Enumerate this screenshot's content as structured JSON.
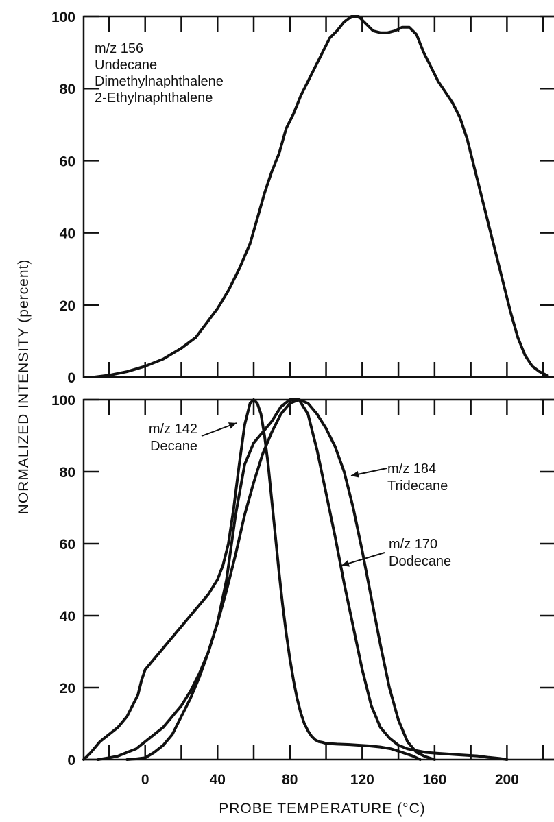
{
  "chart_data": [
    {
      "type": "line",
      "panel": "top",
      "title": "",
      "xlabel": "",
      "ylabel": "",
      "xlim": [
        -34,
        226
      ],
      "ylim": [
        0,
        100
      ],
      "x_ticks": [
        0,
        40,
        80,
        120,
        160,
        200
      ],
      "y_ticks": [
        0,
        20,
        40,
        60,
        80,
        100
      ],
      "y_tick_labels": [
        "0",
        "20",
        "40",
        "60",
        "80",
        "100"
      ],
      "annotation": {
        "lines": [
          "m/z  156",
          "Undecane",
          "Dimethylnaphthalene",
          "2-Ethylnaphthalene"
        ]
      },
      "series": [
        {
          "x": [
            -28,
            -20,
            -10,
            0,
            10,
            20,
            28,
            34,
            40,
            46,
            52,
            58,
            62,
            66,
            70,
            74,
            78,
            82,
            86,
            90,
            94,
            98,
            102,
            106,
            110,
            114,
            118,
            122,
            126,
            130,
            134,
            138,
            142,
            146,
            150,
            154,
            158,
            162,
            166,
            170,
            174,
            178,
            182,
            186,
            190,
            194,
            198,
            202,
            206,
            210,
            214,
            218,
            222
          ],
          "y": [
            0,
            0.5,
            1.5,
            3,
            5,
            8,
            11,
            15,
            19,
            24,
            30,
            37,
            44,
            51,
            57,
            62,
            69,
            73,
            78,
            82,
            86,
            90,
            94,
            96,
            98.5,
            100,
            100,
            98,
            96,
            95.5,
            95.5,
            96,
            97,
            97,
            95,
            90,
            86,
            82,
            79,
            76,
            72,
            66,
            58,
            50,
            42,
            34,
            26,
            18,
            11,
            6,
            3,
            1.5,
            0.5
          ]
        }
      ]
    },
    {
      "type": "line",
      "panel": "bottom",
      "title": "",
      "ylabel": "NORMALIZED INTENSITY (percent)",
      "xlabel": "PROBE TEMPERATURE (°C)",
      "xlim": [
        -34,
        226
      ],
      "ylim": [
        0,
        100
      ],
      "x_ticks": [
        0,
        40,
        80,
        120,
        160,
        200
      ],
      "x_tick_labels": [
        "0",
        "40",
        "80",
        "120",
        "160",
        "200"
      ],
      "y_ticks": [
        0,
        20,
        40,
        60,
        80,
        100
      ],
      "y_tick_labels": [
        "0",
        "20",
        "40",
        "60",
        "80",
        "100"
      ],
      "series": [
        {
          "name": "m/z 142 Decane",
          "label_lines": [
            "m/z  142",
            "Decane"
          ],
          "x": [
            -34,
            -30,
            -25,
            -20,
            -15,
            -10,
            -7,
            -4,
            -2,
            0,
            5,
            10,
            15,
            20,
            25,
            30,
            35,
            40,
            43,
            46,
            49,
            52,
            55,
            58,
            60,
            62,
            64,
            66,
            68,
            70,
            72,
            74,
            76,
            78,
            80,
            82,
            84,
            86,
            88,
            90,
            92,
            94,
            96,
            98,
            100,
            106,
            112,
            118,
            124,
            130,
            136,
            142,
            148,
            152
          ],
          "y": [
            0,
            2,
            5,
            7,
            9,
            12,
            15,
            18,
            22,
            25,
            28,
            31,
            34,
            37,
            40,
            43,
            46,
            50,
            54,
            60,
            70,
            82,
            93,
            99,
            100,
            99,
            96,
            90,
            82,
            72,
            62,
            52,
            43,
            35,
            28,
            22,
            17,
            13,
            10,
            8,
            6.5,
            5.5,
            5,
            4.8,
            4.5,
            4.3,
            4.2,
            4,
            3.8,
            3.5,
            3,
            2,
            1,
            0
          ]
        },
        {
          "name": "m/z 170 Dodecane",
          "label_lines": [
            "m/z  170",
            "Dodecane"
          ],
          "x": [
            -26,
            -20,
            -15,
            -10,
            -5,
            0,
            5,
            10,
            15,
            20,
            25,
            30,
            35,
            40,
            45,
            50,
            55,
            60,
            65,
            70,
            75,
            80,
            85,
            90,
            95,
            100,
            105,
            110,
            115,
            120,
            125,
            130,
            135,
            140,
            145,
            150,
            155,
            160,
            166,
            172,
            178,
            184,
            190,
            196,
            200
          ],
          "y": [
            0,
            0.5,
            1,
            2,
            3,
            5,
            7,
            9,
            12,
            15,
            19,
            24,
            30,
            38,
            50,
            68,
            82,
            88,
            91,
            94,
            98,
            100,
            100,
            96,
            86,
            74,
            62,
            49,
            37,
            25,
            15,
            9,
            6,
            4,
            3,
            2.5,
            2,
            1.8,
            1.6,
            1.4,
            1.2,
            1,
            0.6,
            0.3,
            0
          ]
        },
        {
          "name": "m/z 184 Tridecane",
          "label_lines": [
            "m/z  184",
            "Tridecane"
          ],
          "x": [
            -10,
            -5,
            0,
            5,
            10,
            15,
            20,
            25,
            30,
            35,
            40,
            45,
            50,
            55,
            60,
            65,
            70,
            75,
            80,
            85,
            90,
            95,
            100,
            105,
            110,
            115,
            120,
            125,
            130,
            135,
            140,
            145,
            150,
            155,
            160
          ],
          "y": [
            0,
            0.2,
            0.5,
            2,
            4,
            7,
            12,
            17,
            23,
            30,
            38,
            47,
            57,
            68,
            77,
            85,
            91,
            96,
            99,
            100,
            99,
            96,
            92,
            87,
            80,
            70,
            58,
            45,
            32,
            20,
            11,
            5,
            2,
            0.8,
            0
          ]
        }
      ]
    }
  ]
}
